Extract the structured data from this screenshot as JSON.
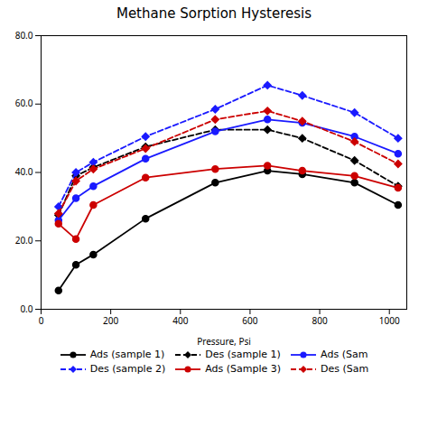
{
  "chart_data": {
    "type": "line",
    "title": "Methane Sorption Hysteresis",
    "xlabel": "Pressure, Psi",
    "x": [
      50,
      100,
      150,
      300,
      500,
      650,
      750,
      900,
      1025
    ],
    "series": [
      {
        "name": "Ads (sample 1)",
        "color": "#000000",
        "marker": "circle",
        "line_style": "solid",
        "values": [
          5.5,
          13.0,
          16.0,
          26.5,
          37.0,
          40.5,
          39.5,
          37.0,
          30.5
        ]
      },
      {
        "name": "Des (sample 1)",
        "color": "#000000",
        "marker": "diamond",
        "line_style": "dashed",
        "values": [
          27.5,
          39.0,
          41.5,
          47.5,
          52.5,
          52.5,
          50.0,
          43.5,
          36.0
        ]
      },
      {
        "name": "Ads (Sam",
        "color": "#1a1aff",
        "marker": "circle",
        "line_style": "solid",
        "values": [
          26.0,
          32.5,
          36.0,
          44.0,
          52.0,
          55.5,
          54.5,
          50.5,
          45.5
        ]
      },
      {
        "name": "Des (sample 2)",
        "color": "#1a1aff",
        "marker": "diamond",
        "line_style": "dashed",
        "values": [
          30.0,
          40.0,
          43.0,
          50.5,
          58.5,
          65.5,
          62.5,
          57.5,
          50.0
        ]
      },
      {
        "name": "Ads (Sample 3)",
        "color": "#cc0000",
        "marker": "circle",
        "line_style": "solid",
        "values": [
          25.0,
          20.5,
          30.5,
          38.5,
          41.0,
          42.0,
          40.5,
          39.0,
          35.5
        ]
      },
      {
        "name": "Des (Sam",
        "color": "#cc0000",
        "marker": "diamond",
        "line_style": "dashed",
        "values": [
          28.0,
          37.5,
          41.0,
          47.0,
          55.5,
          58.0,
          55.0,
          49.0,
          42.5
        ]
      }
    ],
    "xlim": [
      0,
      1050
    ],
    "xticks": [
      0,
      200,
      400,
      600,
      800,
      1000
    ],
    "ylim": [
      0.0,
      80.0
    ],
    "yticks": [
      {
        "value": 0.0,
        "label": "0.0"
      },
      {
        "value": 20.0,
        "label": "20.0"
      },
      {
        "value": 40.0,
        "label": "40.0"
      },
      {
        "value": 60.0,
        "label": "60.0"
      },
      {
        "value": 80.0,
        "label": "80.0"
      }
    ],
    "grid": false,
    "legend": "bottom"
  }
}
